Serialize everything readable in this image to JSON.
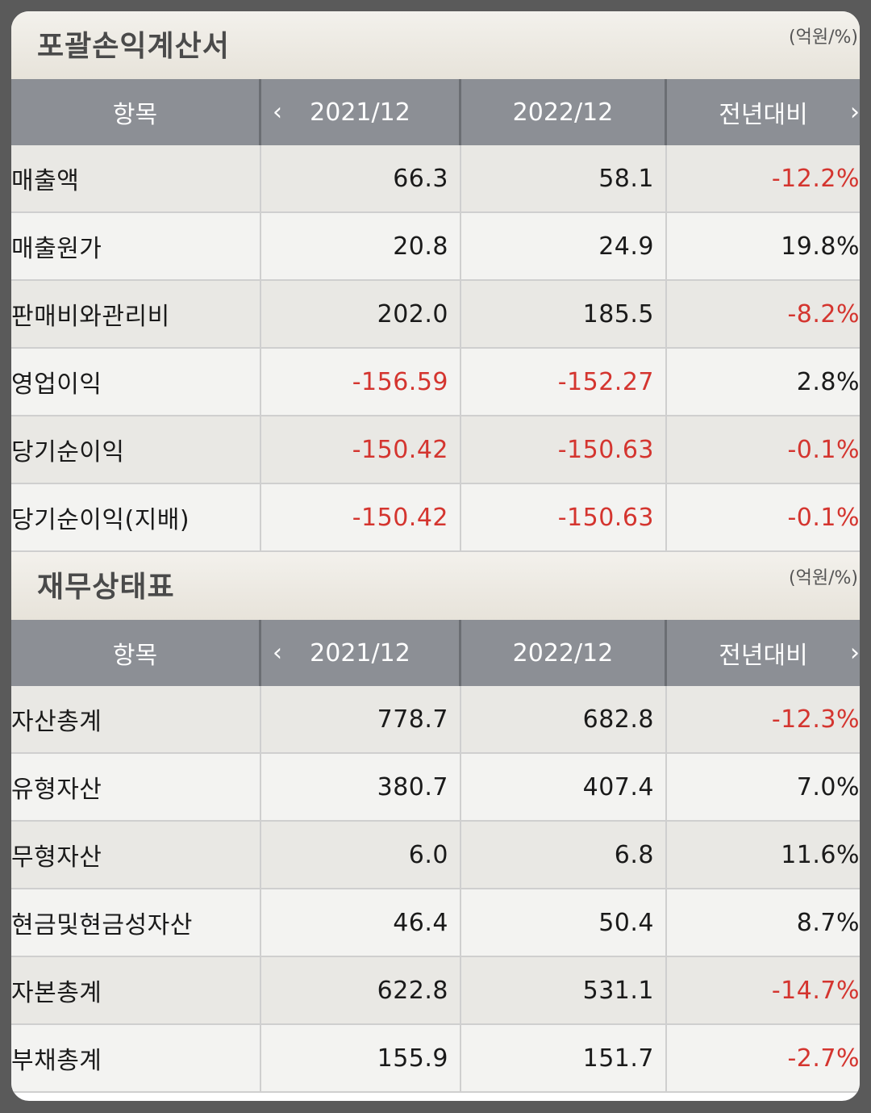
{
  "income_statement": {
    "title": "포괄손익계산서",
    "unit": "(억원/%)",
    "headers": {
      "item": "항목",
      "col1": "2021/12",
      "col2": "2022/12",
      "col3": "전년대비"
    },
    "rows": [
      {
        "label": "매출액",
        "v1": "66.3",
        "v2": "58.1",
        "v3": "-12.2%"
      },
      {
        "label": "매출원가",
        "v1": "20.8",
        "v2": "24.9",
        "v3": "19.8%"
      },
      {
        "label": "판매비와관리비",
        "v1": "202.0",
        "v2": "185.5",
        "v3": "-8.2%"
      },
      {
        "label": "영업이익",
        "v1": "-156.59",
        "v2": "-152.27",
        "v3": "2.8%"
      },
      {
        "label": "당기순이익",
        "v1": "-150.42",
        "v2": "-150.63",
        "v3": "-0.1%"
      },
      {
        "label": "당기순이익(지배)",
        "v1": "-150.42",
        "v2": "-150.63",
        "v3": "-0.1%"
      }
    ]
  },
  "balance_sheet": {
    "title": "재무상태표",
    "unit": "(억원/%)",
    "headers": {
      "item": "항목",
      "col1": "2021/12",
      "col2": "2022/12",
      "col3": "전년대비"
    },
    "rows": [
      {
        "label": "자산총계",
        "v1": "778.7",
        "v2": "682.8",
        "v3": "-12.3%"
      },
      {
        "label": "유형자산",
        "v1": "380.7",
        "v2": "407.4",
        "v3": "7.0%"
      },
      {
        "label": "무형자산",
        "v1": "6.0",
        "v2": "6.8",
        "v3": "11.6%"
      },
      {
        "label": "현금및현금성자산",
        "v1": "46.4",
        "v2": "50.4",
        "v3": "8.7%"
      },
      {
        "label": "자본총계",
        "v1": "622.8",
        "v2": "531.1",
        "v3": "-14.7%"
      },
      {
        "label": "부채총계",
        "v1": "155.9",
        "v2": "151.7",
        "v3": "-2.7%"
      }
    ]
  },
  "colors": {
    "negative": "#d4352f",
    "header_bg": "#8c8f95"
  },
  "icons": {
    "prev": "‹",
    "next": "›"
  }
}
